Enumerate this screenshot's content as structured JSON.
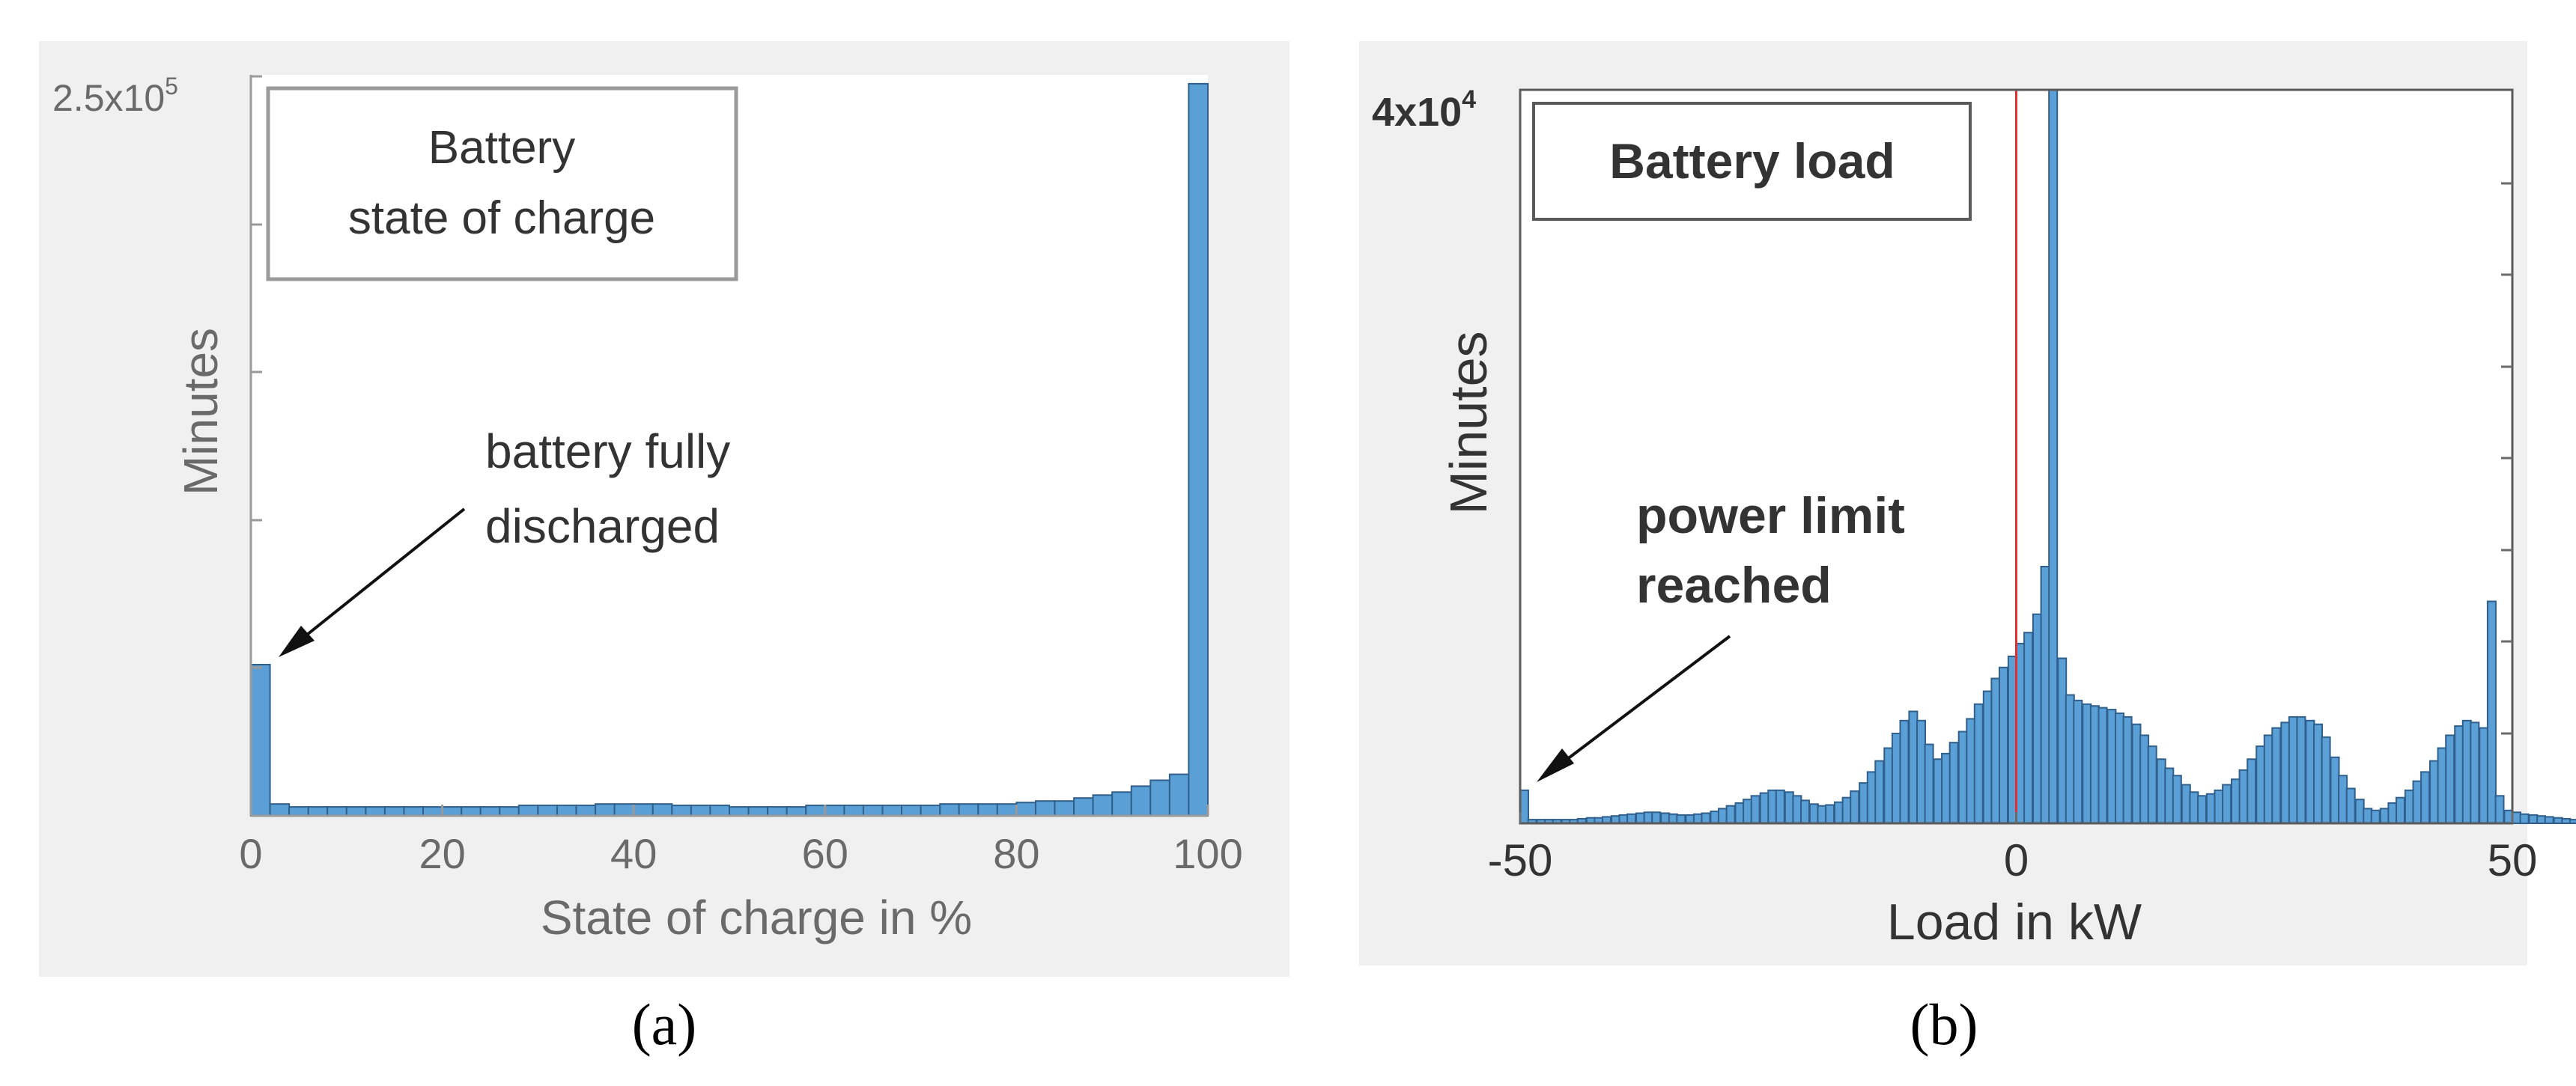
{
  "chart_data": [
    {
      "type": "bar",
      "panel_label": "(a)",
      "title_lines": [
        "Battery",
        "state of charge"
      ],
      "xlabel": "State of charge in %",
      "ylabel": "Minutes",
      "ytick_label": "2.5x10",
      "ytick_label_exp": "5",
      "xticks": [
        "0",
        "20",
        "40",
        "60",
        "80",
        "100"
      ],
      "xlim": [
        0,
        100
      ],
      "ylim": [
        0,
        250000
      ],
      "annotation": {
        "lines": [
          "battery fully",
          "discharged"
        ]
      },
      "bin_width": 2,
      "bins": [
        [
          0,
          51000
        ],
        [
          2,
          4000
        ],
        [
          4,
          3000
        ],
        [
          6,
          3000
        ],
        [
          8,
          3000
        ],
        [
          10,
          3000
        ],
        [
          12,
          3000
        ],
        [
          14,
          3000
        ],
        [
          16,
          3000
        ],
        [
          18,
          3000
        ],
        [
          20,
          3000
        ],
        [
          22,
          3000
        ],
        [
          24,
          3000
        ],
        [
          26,
          3000
        ],
        [
          28,
          3500
        ],
        [
          30,
          3500
        ],
        [
          32,
          3500
        ],
        [
          34,
          3500
        ],
        [
          36,
          4000
        ],
        [
          38,
          4000
        ],
        [
          40,
          4000
        ],
        [
          42,
          4000
        ],
        [
          44,
          3500
        ],
        [
          46,
          3500
        ],
        [
          48,
          3500
        ],
        [
          50,
          3000
        ],
        [
          52,
          3000
        ],
        [
          54,
          3000
        ],
        [
          56,
          3000
        ],
        [
          58,
          3500
        ],
        [
          60,
          3500
        ],
        [
          62,
          3500
        ],
        [
          64,
          3500
        ],
        [
          66,
          3500
        ],
        [
          68,
          3500
        ],
        [
          70,
          3500
        ],
        [
          72,
          4000
        ],
        [
          74,
          4000
        ],
        [
          76,
          4000
        ],
        [
          78,
          4000
        ],
        [
          80,
          4500
        ],
        [
          82,
          5000
        ],
        [
          84,
          5000
        ],
        [
          86,
          6000
        ],
        [
          88,
          7000
        ],
        [
          90,
          8000
        ],
        [
          92,
          10000
        ],
        [
          94,
          12000
        ],
        [
          96,
          14000
        ],
        [
          98,
          247000
        ]
      ]
    },
    {
      "type": "bar",
      "panel_label": "(b)",
      "title": "Battery load",
      "xlabel": "Load in kW",
      "ylabel": "Minutes",
      "ytick_label": "4x10",
      "ytick_label_exp": "4",
      "xticks": [
        "-50",
        "0",
        "50"
      ],
      "xlim": [
        -50,
        50
      ],
      "ylim": [
        0,
        40000
      ],
      "reference_line_x": 0,
      "reference_line_color": "#e03030",
      "annotation": {
        "lines": [
          "power limit",
          "reached"
        ]
      },
      "bin_width": 0.83,
      "bins": [
        [
          -50.0,
          1800
        ],
        [
          -49.2,
          200
        ],
        [
          -48.3,
          200
        ],
        [
          -47.5,
          200
        ],
        [
          -46.7,
          200
        ],
        [
          -45.8,
          200
        ],
        [
          -45.0,
          200
        ],
        [
          -44.2,
          250
        ],
        [
          -43.3,
          300
        ],
        [
          -42.5,
          300
        ],
        [
          -41.7,
          350
        ],
        [
          -40.8,
          400
        ],
        [
          -40.0,
          450
        ],
        [
          -39.2,
          500
        ],
        [
          -38.3,
          550
        ],
        [
          -37.5,
          600
        ],
        [
          -36.7,
          600
        ],
        [
          -35.8,
          550
        ],
        [
          -35.0,
          500
        ],
        [
          -34.2,
          450
        ],
        [
          -33.3,
          450
        ],
        [
          -32.5,
          500
        ],
        [
          -31.7,
          550
        ],
        [
          -30.8,
          650
        ],
        [
          -30.0,
          800
        ],
        [
          -29.2,
          950
        ],
        [
          -28.3,
          1100
        ],
        [
          -27.5,
          1300
        ],
        [
          -26.7,
          1500
        ],
        [
          -25.8,
          1650
        ],
        [
          -25.0,
          1800
        ],
        [
          -24.2,
          1800
        ],
        [
          -23.3,
          1700
        ],
        [
          -22.5,
          1500
        ],
        [
          -21.7,
          1250
        ],
        [
          -20.8,
          1050
        ],
        [
          -20.0,
          950
        ],
        [
          -19.2,
          1000
        ],
        [
          -18.3,
          1150
        ],
        [
          -17.5,
          1400
        ],
        [
          -16.7,
          1750
        ],
        [
          -15.8,
          2200
        ],
        [
          -15.0,
          2800
        ],
        [
          -14.2,
          3400
        ],
        [
          -13.3,
          4100
        ],
        [
          -12.5,
          4900
        ],
        [
          -11.7,
          5600
        ],
        [
          -10.8,
          6100
        ],
        [
          -10.0,
          5600
        ],
        [
          -9.2,
          4300
        ],
        [
          -8.3,
          3500
        ],
        [
          -7.5,
          3800
        ],
        [
          -6.7,
          4400
        ],
        [
          -5.8,
          5000
        ],
        [
          -5.0,
          5700
        ],
        [
          -4.2,
          6500
        ],
        [
          -3.3,
          7200
        ],
        [
          -2.5,
          7900
        ],
        [
          -1.7,
          8500
        ],
        [
          -0.8,
          9100
        ],
        [
          0.0,
          9800
        ],
        [
          0.8,
          10400
        ],
        [
          1.7,
          11400
        ],
        [
          2.5,
          14000
        ],
        [
          3.3,
          40000
        ],
        [
          4.2,
          9000
        ],
        [
          5.0,
          7000
        ],
        [
          5.8,
          6700
        ],
        [
          6.7,
          6500
        ],
        [
          7.5,
          6400
        ],
        [
          8.3,
          6300
        ],
        [
          9.2,
          6200
        ],
        [
          10.0,
          6000
        ],
        [
          10.8,
          5800
        ],
        [
          11.7,
          5400
        ],
        [
          12.5,
          4800
        ],
        [
          13.3,
          4200
        ],
        [
          14.2,
          3500
        ],
        [
          15.0,
          3000
        ],
        [
          15.8,
          2600
        ],
        [
          16.7,
          2100
        ],
        [
          17.5,
          1700
        ],
        [
          18.3,
          1500
        ],
        [
          19.2,
          1600
        ],
        [
          20.0,
          1800
        ],
        [
          20.8,
          2100
        ],
        [
          21.7,
          2400
        ],
        [
          22.5,
          2900
        ],
        [
          23.3,
          3500
        ],
        [
          24.2,
          4200
        ],
        [
          25.0,
          4800
        ],
        [
          25.8,
          5200
        ],
        [
          26.7,
          5500
        ],
        [
          27.5,
          5800
        ],
        [
          28.3,
          5800
        ],
        [
          29.2,
          5600
        ],
        [
          30.0,
          5400
        ],
        [
          30.8,
          4700
        ],
        [
          31.7,
          3600
        ],
        [
          32.5,
          2600
        ],
        [
          33.3,
          1900
        ],
        [
          34.2,
          1300
        ],
        [
          35.0,
          800
        ],
        [
          35.8,
          700
        ],
        [
          36.7,
          800
        ],
        [
          37.5,
          1100
        ],
        [
          38.3,
          1400
        ],
        [
          39.2,
          1800
        ],
        [
          40.0,
          2300
        ],
        [
          40.8,
          2800
        ],
        [
          41.7,
          3400
        ],
        [
          42.5,
          4100
        ],
        [
          43.3,
          4800
        ],
        [
          44.2,
          5300
        ],
        [
          45.0,
          5600
        ],
        [
          45.8,
          5500
        ],
        [
          46.7,
          5200
        ],
        [
          47.5,
          12100
        ],
        [
          48.3,
          1500
        ],
        [
          49.2,
          700
        ],
        [
          50.0,
          600
        ],
        [
          50.8,
          500
        ],
        [
          51.7,
          450
        ],
        [
          52.5,
          400
        ],
        [
          53.3,
          350
        ],
        [
          54.2,
          300
        ],
        [
          55.0,
          250
        ],
        [
          55.8,
          200
        ],
        [
          56.7,
          150
        ],
        [
          57.5,
          100
        ],
        [
          58.3,
          80
        ],
        [
          59.2,
          60
        ],
        [
          60.0,
          40
        ]
      ]
    }
  ]
}
